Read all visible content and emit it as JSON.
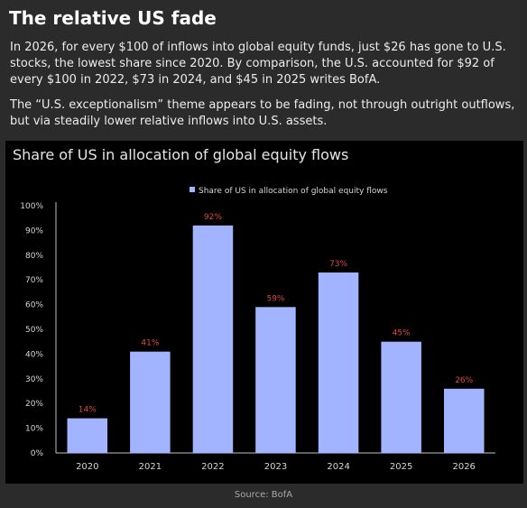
{
  "article": {
    "headline": "The relative US fade",
    "paragraph1": "In 2026, for every $100 of inflows into global equity funds, just $26 has gone to U.S. stocks, the lowest share since 2020. By comparison, the U.S. accounted for $92 of every $100 in 2022, $73 in 2024, and $45 in 2025 writes BofA.",
    "paragraph2": "The “U.S. exceptionalism” theme appears to be fading, not through outright outflows, but via steadily lower relative inflows into U.S. assets.",
    "source": "Source: BofA"
  },
  "chart_data": {
    "type": "bar",
    "title": "Share of US in allocation of global equity flows",
    "categories": [
      "2020",
      "2021",
      "2022",
      "2023",
      "2024",
      "2025",
      "2026"
    ],
    "series": [
      {
        "name": "Share of US in allocation of global equity flows",
        "values": [
          14,
          41,
          92,
          59,
          73,
          45,
          26
        ]
      }
    ],
    "data_labels": [
      "14%",
      "41%",
      "92%",
      "59%",
      "73%",
      "45%",
      "26%"
    ],
    "y_ticks": [
      "0%",
      "10%",
      "20%",
      "30%",
      "40%",
      "50%",
      "60%",
      "70%",
      "80%",
      "90%",
      "100%"
    ],
    "ylim": [
      0,
      100
    ],
    "grid": false,
    "legend_position": "top-center",
    "colors": {
      "bar": "#a2b4ff",
      "data_label": "#e0473f",
      "axis": "#bfbfbf",
      "text": "#d6d6d6",
      "background": "#000000"
    }
  }
}
